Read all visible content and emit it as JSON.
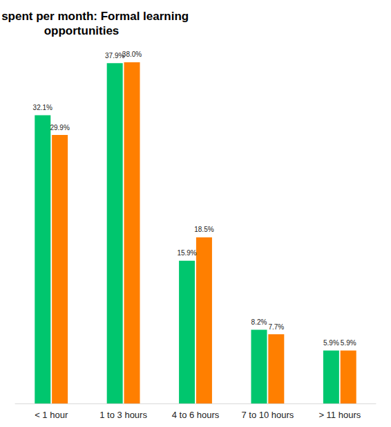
{
  "chart_data": {
    "type": "bar",
    "title": "Time spent per month: Formal learning opportunities",
    "categories": [
      "< 1 hour",
      "1 to 3 hours",
      "4 to 6 hours",
      "7 to 10 hours",
      "> 11 hours"
    ],
    "series": [
      {
        "color": "#00c66e",
        "values": [
          32.1,
          37.9,
          15.9,
          8.2,
          5.9
        ],
        "value_labels": [
          "32.1%",
          "37.9%",
          "15.9%",
          "8.2%",
          "5.9%"
        ]
      },
      {
        "color": "#ff7f00",
        "values": [
          29.9,
          38.0,
          18.5,
          7.7,
          5.9
        ],
        "value_labels": [
          "29.9%",
          "38.0%",
          "18.5%",
          "7.7%",
          "5.9%"
        ]
      }
    ],
    "ylim": [
      0,
      40
    ],
    "grid": false,
    "data_labels": true,
    "tick_labels": "x"
  }
}
